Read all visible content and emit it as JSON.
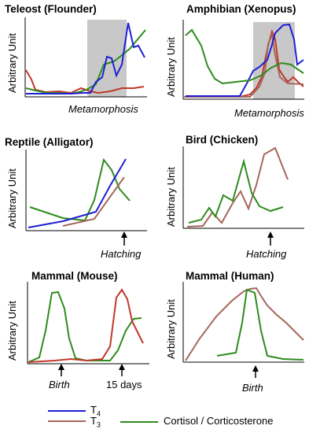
{
  "y_axis_label": "Arbitrary Unit",
  "colors": {
    "t4": "#1f1fd6",
    "t3": "#c0392b",
    "t3_alt": "#a5675a",
    "cortisol": "#2e8b1e",
    "shade": "#c8c8c8",
    "axis": "#000000"
  },
  "panels": [
    {
      "title": "Teleost (Flounder)",
      "annotation": "Metamorphosis",
      "arrow": false
    },
    {
      "title": "Amphibian (Xenopus)",
      "annotation": "Metamorphosis",
      "arrow": false
    },
    {
      "title": "Reptile (Alligator)",
      "annotation": "Hatching",
      "arrow": true
    },
    {
      "title": "Bird (Chicken)",
      "annotation": "Hatching",
      "arrow": true
    },
    {
      "title": "Mammal (Mouse)",
      "annotation": "Birth",
      "annotation2": "15 days",
      "arrow": true
    },
    {
      "title": "Mammal (Human)",
      "annotation": "Birth",
      "arrow": true
    }
  ],
  "legend": {
    "t4_base": "T",
    "t4_sub": "4",
    "t3_base": "T",
    "t3_sub": "3",
    "cortisol": "Cortisol / Corticosterone"
  }
}
